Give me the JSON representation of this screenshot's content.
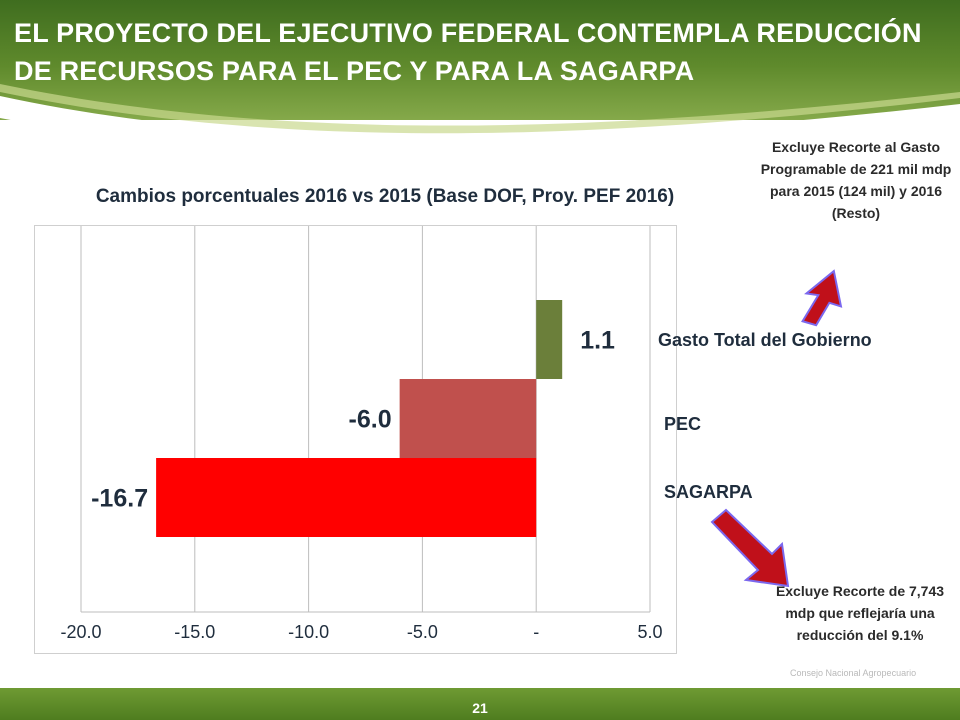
{
  "header": {
    "title": "EL PROYECTO DEL EJECUTIVO FEDERAL CONTEMPLA REDUCCIÓN DE RECURSOS PARA EL PEC Y PARA LA SAGARPA"
  },
  "chart_data": {
    "type": "bar",
    "orientation": "horizontal",
    "title": "Cambios porcentuales 2016 vs 2015 (Base DOF, Proy. PEF 2016)",
    "categories": [
      "Gasto Total del Gobierno",
      "PEC",
      "SAGARPA"
    ],
    "values": [
      1.1,
      -6.0,
      -16.7
    ],
    "value_labels": [
      "1.1",
      "-6.0",
      "-16.7"
    ],
    "colors": [
      "#6b7f3a",
      "#c0504d",
      "#ff0000"
    ],
    "xlim": [
      -20.0,
      5.0
    ],
    "x_ticks": [
      -20.0,
      -15.0,
      -10.0,
      -5.0,
      0,
      5.0
    ],
    "x_tick_labels": [
      "-20.0",
      "-15.0",
      "-10.0",
      "-5.0",
      "-",
      "5.0"
    ],
    "xlabel": "",
    "ylabel": "",
    "grid": true,
    "legend": "none"
  },
  "notes": {
    "top": "Excluye Recorte al Gasto Programable de 221 mil mdp para 2015 (124 mil) y 2016 (Resto)",
    "bottom": "Excluye Recorte de 7,743 mdp que reflejaría una reducción del 9.1%"
  },
  "footer": {
    "page_number": "21",
    "watermark_line1": "Consejo Nacional Agropecuario"
  },
  "colors": {
    "header_green": "#4f7d1f",
    "arrow_red": "#c0101a",
    "arrow_outline": "#6a5acd"
  }
}
